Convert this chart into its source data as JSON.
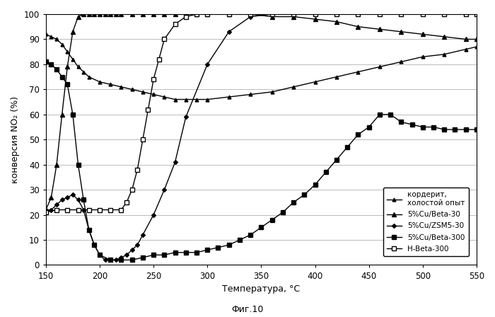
{
  "title": "",
  "xlabel": "Температура, °C",
  "ylabel": "конверсия NO₂ (%)",
  "caption": "Фиг.10",
  "xlim": [
    150,
    550
  ],
  "ylim": [
    0,
    100
  ],
  "xticks": [
    150,
    200,
    250,
    300,
    350,
    400,
    450,
    500,
    550
  ],
  "yticks": [
    0,
    10,
    20,
    30,
    40,
    50,
    60,
    70,
    80,
    90,
    100
  ],
  "cordierite_x": [
    150,
    155,
    160,
    165,
    170,
    175,
    180,
    185,
    190,
    200,
    210,
    220,
    230,
    240,
    250,
    260,
    270,
    280,
    290,
    300,
    320,
    340,
    360,
    380,
    400,
    420,
    440,
    460,
    480,
    500,
    520,
    540,
    550
  ],
  "cordierite_y": [
    92,
    91,
    90,
    88,
    85,
    82,
    79,
    77,
    75,
    73,
    72,
    71,
    70,
    69,
    68,
    67,
    66,
    66,
    66,
    66,
    67,
    68,
    69,
    71,
    73,
    75,
    77,
    79,
    81,
    83,
    84,
    86,
    87
  ],
  "cu_beta30_x": [
    150,
    155,
    160,
    165,
    170,
    175,
    180,
    185,
    190,
    195,
    200,
    205,
    210,
    215,
    220,
    230,
    240,
    250,
    260,
    270,
    280,
    290,
    300,
    320,
    340,
    360,
    380,
    400,
    420,
    440,
    460,
    480,
    500,
    520,
    540,
    550
  ],
  "cu_beta30_y": [
    22,
    27,
    40,
    60,
    79,
    93,
    99,
    100,
    100,
    100,
    100,
    100,
    100,
    100,
    100,
    100,
    100,
    100,
    100,
    100,
    100,
    100,
    100,
    100,
    100,
    99,
    99,
    98,
    97,
    95,
    94,
    93,
    92,
    91,
    90,
    90
  ],
  "cu_zsm5_x": [
    150,
    155,
    160,
    165,
    170,
    175,
    180,
    185,
    190,
    195,
    200,
    205,
    210,
    215,
    220,
    225,
    230,
    235,
    240,
    250,
    260,
    270,
    280,
    300,
    320,
    340,
    360,
    380,
    400,
    420,
    440,
    460,
    480,
    500,
    520,
    540,
    550
  ],
  "cu_zsm5_y": [
    22,
    22,
    24,
    26,
    27,
    28,
    26,
    22,
    14,
    8,
    4,
    2,
    2,
    2,
    3,
    4,
    6,
    8,
    12,
    20,
    30,
    41,
    59,
    80,
    93,
    99,
    100,
    100,
    100,
    100,
    100,
    100,
    100,
    100,
    100,
    100,
    100
  ],
  "cu_beta300_x": [
    150,
    155,
    160,
    165,
    170,
    175,
    180,
    185,
    190,
    195,
    200,
    210,
    220,
    230,
    240,
    250,
    260,
    270,
    280,
    290,
    300,
    310,
    320,
    330,
    340,
    350,
    360,
    370,
    380,
    390,
    400,
    410,
    420,
    430,
    440,
    450,
    460,
    470,
    480,
    490,
    500,
    510,
    520,
    530,
    540,
    550
  ],
  "cu_beta300_y": [
    81,
    80,
    78,
    75,
    72,
    60,
    40,
    26,
    14,
    8,
    4,
    2,
    2,
    2,
    3,
    4,
    4,
    5,
    5,
    5,
    6,
    7,
    8,
    10,
    12,
    15,
    18,
    21,
    25,
    28,
    32,
    37,
    42,
    47,
    52,
    55,
    60,
    60,
    57,
    56,
    55,
    55,
    54,
    54,
    54,
    54
  ],
  "h_beta300_x": [
    150,
    160,
    170,
    180,
    190,
    200,
    210,
    220,
    225,
    230,
    235,
    240,
    245,
    250,
    255,
    260,
    270,
    280,
    290,
    300,
    320,
    340,
    360,
    380,
    400,
    420,
    440,
    460,
    480,
    500,
    520,
    540,
    550
  ],
  "h_beta300_y": [
    21,
    22,
    22,
    22,
    22,
    22,
    22,
    22,
    25,
    30,
    38,
    50,
    62,
    74,
    82,
    90,
    96,
    99,
    100,
    100,
    100,
    100,
    100,
    100,
    100,
    100,
    100,
    100,
    100,
    100,
    100,
    100,
    100
  ],
  "legend_labels": [
    "кордерит,\nхолостой опыт",
    "5%Cu/Beta-30",
    "5%Cu/ZSM5-30",
    "5%Cu/Beta-300",
    "H-Beta-300"
  ],
  "bg_color": "#ffffff",
  "grid_color": "#bbbbbb"
}
